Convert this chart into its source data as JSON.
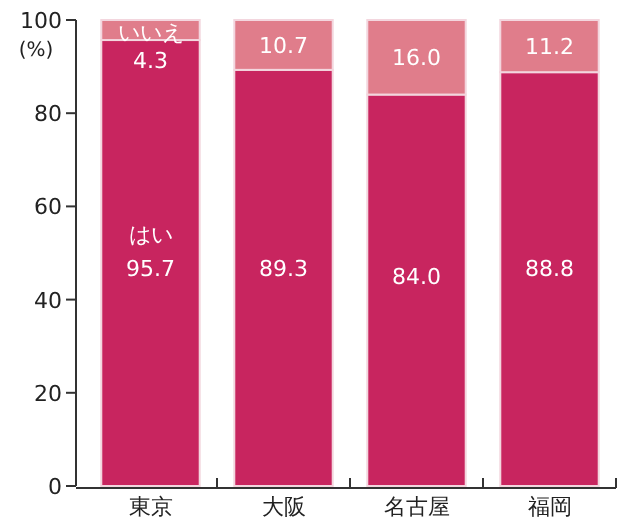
{
  "chart_data": {
    "type": "bar",
    "stacked": true,
    "categories": [
      "東京",
      "大阪",
      "名古屋",
      "福岡"
    ],
    "ylabel": "(%)",
    "ylim": [
      0,
      100
    ],
    "yticks": [
      0,
      20,
      40,
      60,
      80,
      100
    ],
    "grid": false,
    "legend": false,
    "series": [
      {
        "name": "はい",
        "color": "#c8255f",
        "values": [
          95.7,
          89.3,
          84.0,
          88.8
        ],
        "value_labels": [
          "95.7",
          "89.3",
          "84.0",
          "88.8"
        ]
      },
      {
        "name": "いいえ",
        "color": "#e07d8b",
        "values": [
          4.3,
          10.7,
          16.0,
          11.2
        ],
        "value_labels": [
          "4.3",
          "10.7",
          "16.0",
          "11.2"
        ]
      }
    ]
  }
}
